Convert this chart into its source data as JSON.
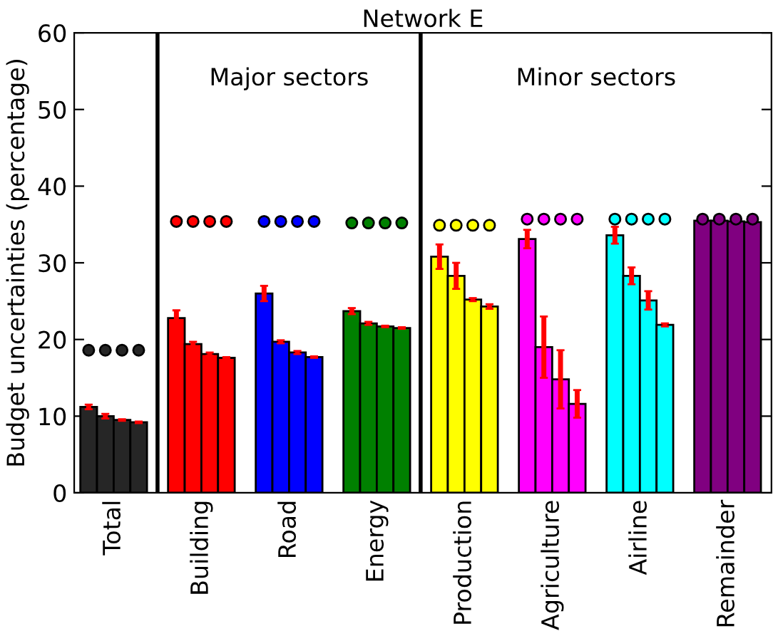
{
  "chart_data": {
    "type": "bar",
    "title": "Network E",
    "ylabel": "Budget uncertainties (percentage)",
    "categories": [
      "Total",
      "Building",
      "Road",
      "Energy",
      "Production",
      "Agriculture",
      "Airline",
      "Remainder"
    ],
    "ylim": [
      0,
      60
    ],
    "yticks": [
      0,
      10,
      20,
      30,
      40,
      50,
      60
    ],
    "grid": false,
    "legend": false,
    "series": [
      {
        "colors": [
          "#262626",
          "#ff0000",
          "#0000ff",
          "#008000",
          "#ffff00",
          "#ff00ff",
          "#00ffff",
          "#800080"
        ],
        "values": [
          11.2,
          22.8,
          26.0,
          23.7,
          30.8,
          33.1,
          33.6,
          35.5
        ],
        "errors": [
          0.3,
          1.0,
          1.0,
          0.4,
          1.6,
          1.2,
          1.1,
          0.1
        ]
      },
      {
        "colors": [
          "#262626",
          "#ff0000",
          "#0000ff",
          "#008000",
          "#ffff00",
          "#ff00ff",
          "#00ffff",
          "#800080"
        ],
        "values": [
          10.0,
          19.4,
          19.7,
          22.1,
          28.3,
          19.0,
          28.3,
          35.5
        ],
        "errors": [
          0.3,
          0.3,
          0.2,
          0.2,
          1.7,
          4.0,
          1.1,
          0.1
        ]
      },
      {
        "colors": [
          "#262626",
          "#ff0000",
          "#0000ff",
          "#008000",
          "#ffff00",
          "#ff00ff",
          "#00ffff",
          "#800080"
        ],
        "values": [
          9.5,
          18.1,
          18.3,
          21.7,
          25.2,
          14.8,
          25.1,
          35.4
        ],
        "errors": [
          0.1,
          0.2,
          0.2,
          0.1,
          0.2,
          3.8,
          1.2,
          0.1
        ]
      },
      {
        "colors": [
          "#262626",
          "#ff0000",
          "#0000ff",
          "#008000",
          "#ffff00",
          "#ff00ff",
          "#00ffff",
          "#800080"
        ],
        "values": [
          9.2,
          17.6,
          17.7,
          21.5,
          24.3,
          11.6,
          21.9,
          35.3
        ],
        "errors": [
          0.1,
          0.1,
          0.1,
          0.1,
          0.3,
          1.8,
          0.2,
          0.1
        ]
      },
      {
        "type": "scatter",
        "marker": "circle",
        "colors": [
          "#262626",
          "#ff0000",
          "#0000ff",
          "#008000",
          "#ffff00",
          "#ff00ff",
          "#00ffff",
          "#800080"
        ],
        "values": [
          18.6,
          35.4,
          35.4,
          35.2,
          34.9,
          35.7,
          35.7,
          35.7
        ]
      },
      {
        "type": "scatter",
        "marker": "circle",
        "colors": [
          "#262626",
          "#ff0000",
          "#0000ff",
          "#008000",
          "#ffff00",
          "#ff00ff",
          "#00ffff",
          "#800080"
        ],
        "values": [
          18.6,
          35.4,
          35.4,
          35.2,
          34.9,
          35.7,
          35.7,
          35.7
        ]
      },
      {
        "type": "scatter",
        "marker": "circle",
        "colors": [
          "#262626",
          "#ff0000",
          "#0000ff",
          "#008000",
          "#ffff00",
          "#ff00ff",
          "#00ffff",
          "#800080"
        ],
        "values": [
          18.6,
          35.4,
          35.4,
          35.2,
          34.9,
          35.7,
          35.7,
          35.7
        ]
      },
      {
        "type": "scatter",
        "marker": "circle",
        "colors": [
          "#262626",
          "#ff0000",
          "#0000ff",
          "#008000",
          "#ffff00",
          "#ff00ff",
          "#00ffff",
          "#800080"
        ],
        "values": [
          18.6,
          35.4,
          35.4,
          35.2,
          34.9,
          35.7,
          35.7,
          35.7
        ]
      }
    ],
    "annotations": [
      "Major sectors",
      "Minor sectors"
    ]
  }
}
